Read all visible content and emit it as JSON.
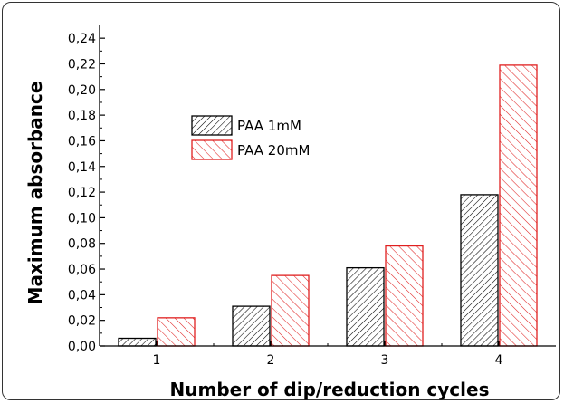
{
  "chart_data": {
    "type": "bar",
    "categories": [
      "1",
      "2",
      "3",
      "4"
    ],
    "series": [
      {
        "name": "PAA 1mM",
        "values": [
          0.006,
          0.031,
          0.061,
          0.118
        ],
        "color": "#000000",
        "pattern": "hatch-dense"
      },
      {
        "name": "PAA 20mM",
        "values": [
          0.022,
          0.055,
          0.078,
          0.219
        ],
        "color": "#e02020",
        "pattern": "hatch-sparse"
      }
    ],
    "xlabel": "Number of dip/reduction cycles",
    "ylabel": "Maximum absorbance",
    "ylim": [
      0,
      0.25
    ],
    "yticks": [
      "0,00",
      "0,02",
      "0,04",
      "0,06",
      "0,08",
      "0,10",
      "0,12",
      "0,14",
      "0,16",
      "0,18",
      "0,20",
      "0,22",
      "0,24"
    ],
    "ytick_values": [
      0,
      0.02,
      0.04,
      0.06,
      0.08,
      0.1,
      0.12,
      0.14,
      0.16,
      0.18,
      0.2,
      0.22,
      0.24
    ],
    "grid": false,
    "legend_position": "upper-left-center"
  }
}
